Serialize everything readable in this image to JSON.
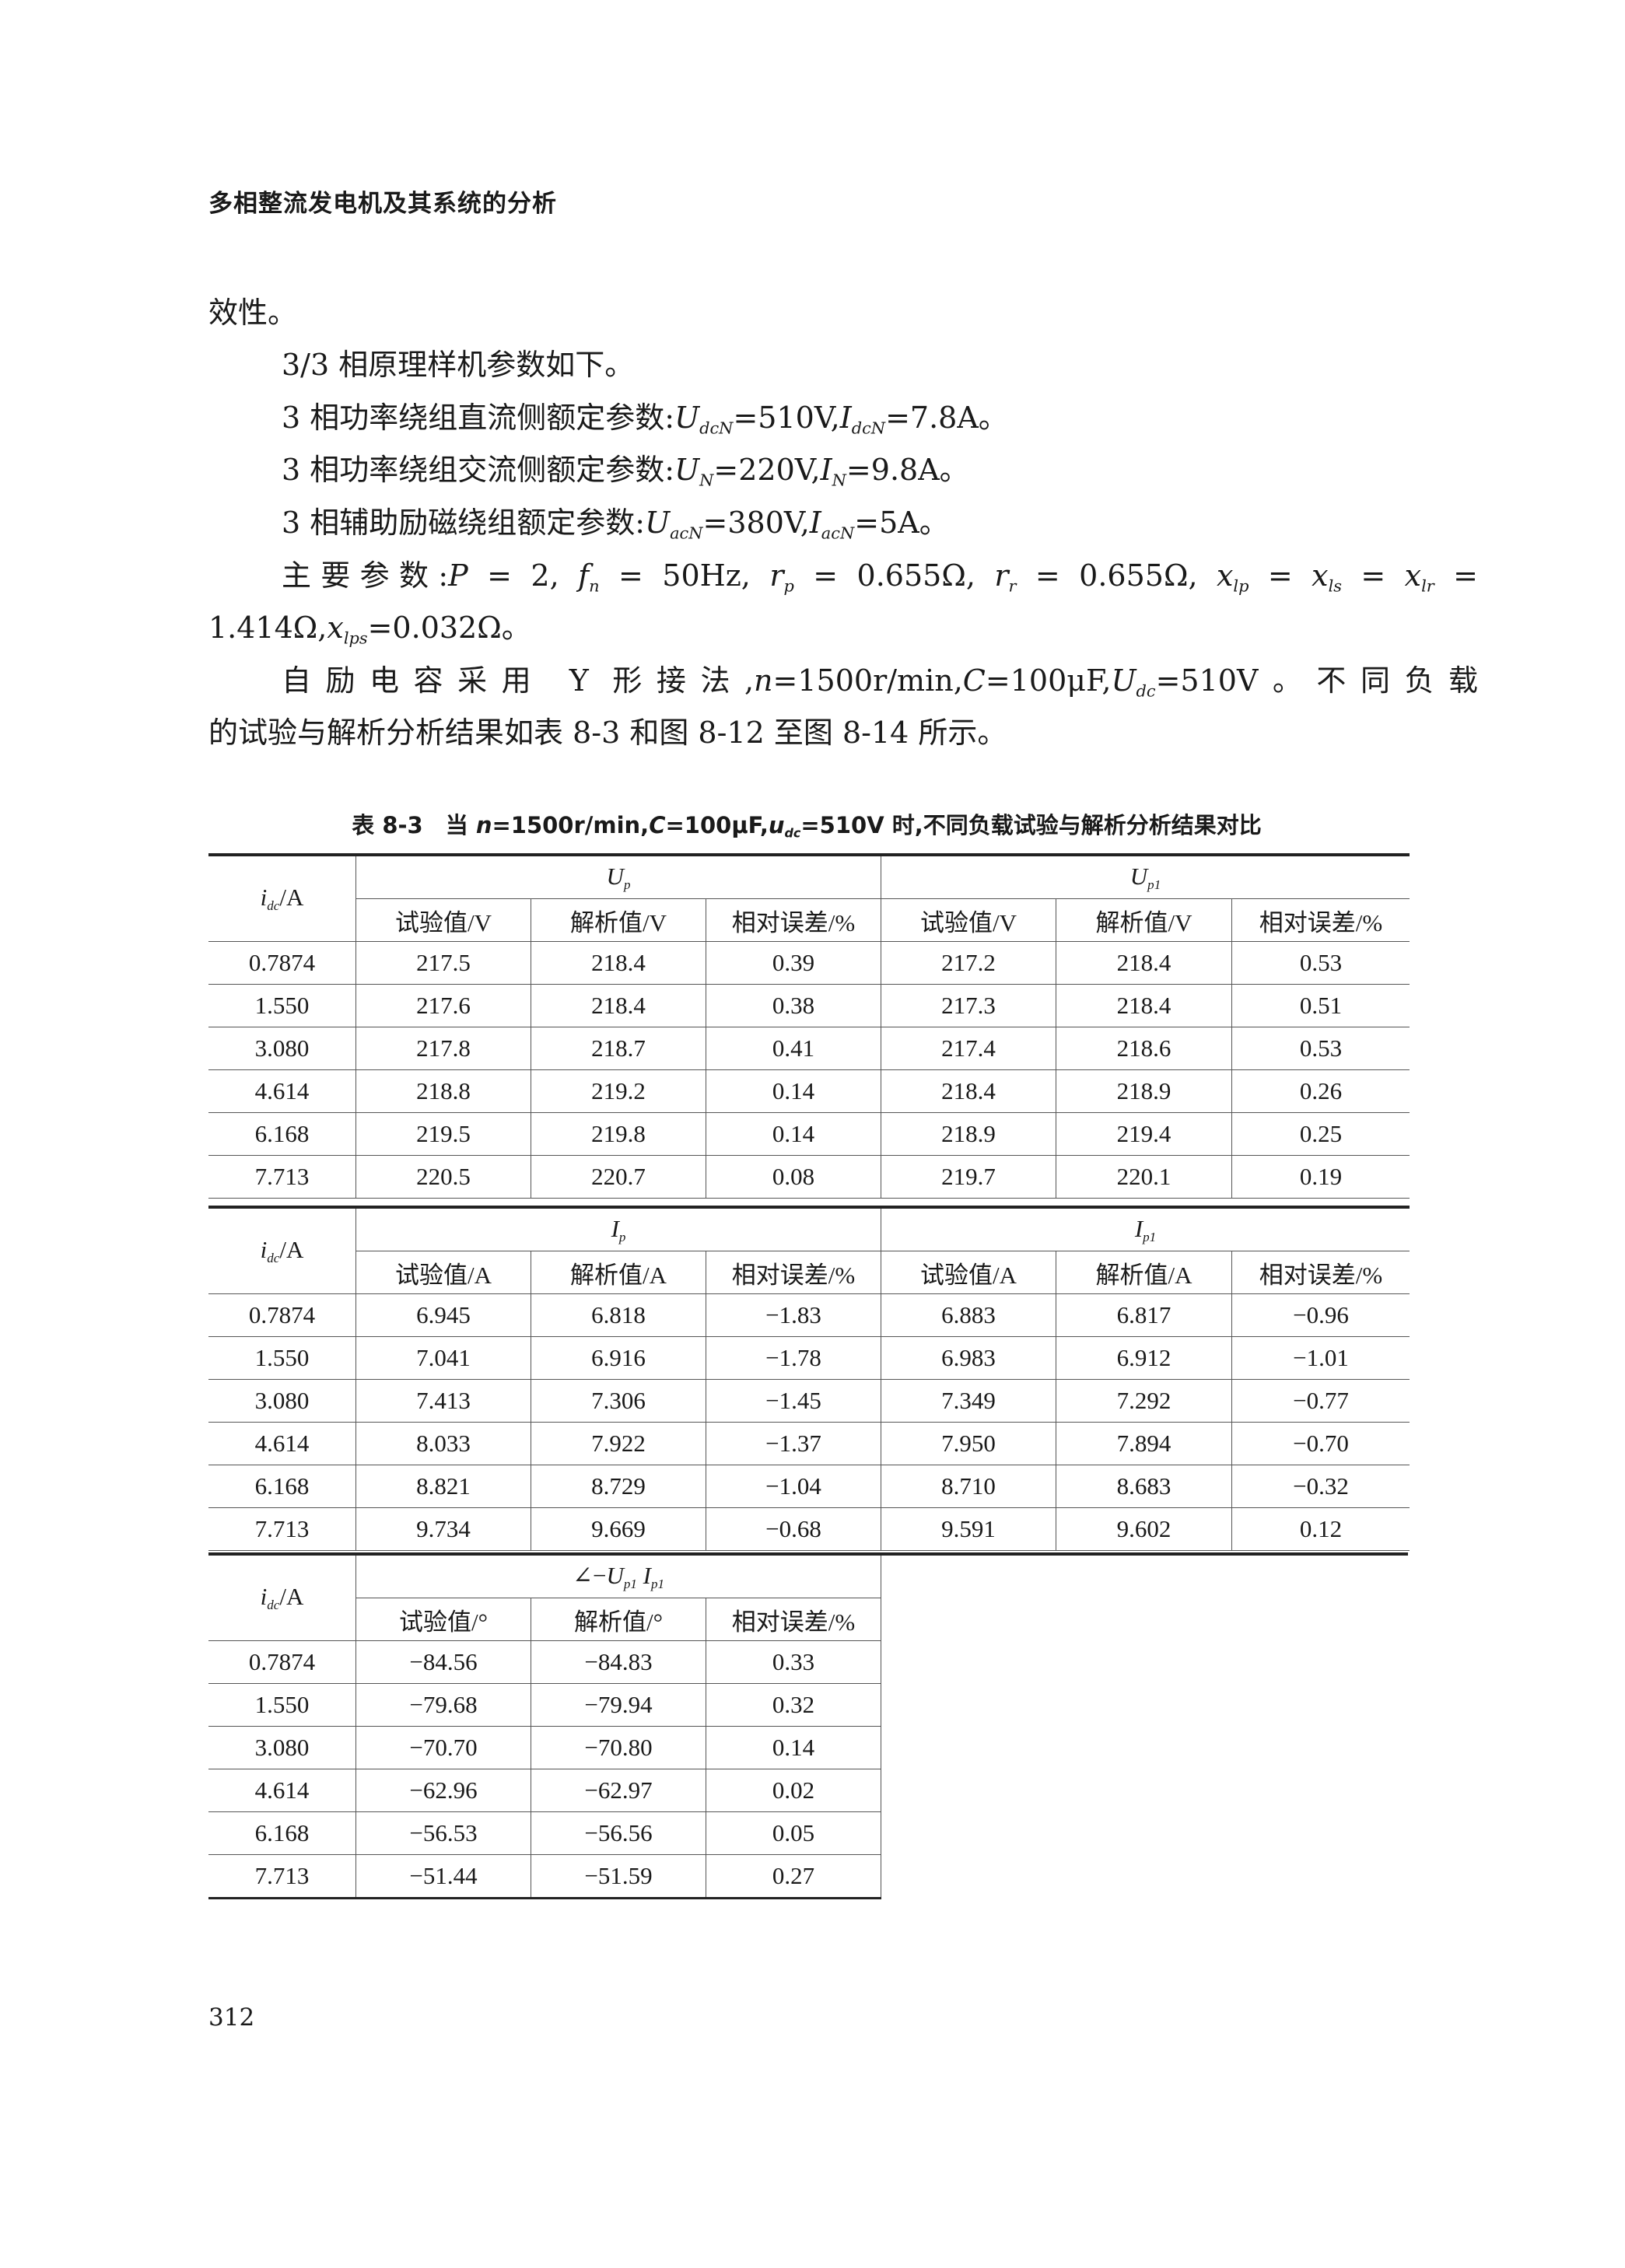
{
  "header": {
    "running_title": "多相整流发电机及其系统的分析"
  },
  "body": {
    "lines": [
      {
        "style": "noindent",
        "segments": [
          {
            "t": "效性。"
          }
        ]
      },
      {
        "style": "indent",
        "segments": [
          {
            "t": "3/3 相原理样机参数如下。"
          }
        ]
      },
      {
        "style": "indent",
        "segments": [
          {
            "t": "3 相功率绕组直流侧额定参数:"
          },
          {
            "v": "U"
          },
          {
            "s": "dcN"
          },
          {
            "t": "=510V,"
          },
          {
            "v": "I"
          },
          {
            "s": "dcN"
          },
          {
            "t": "=7.8A。"
          }
        ]
      },
      {
        "style": "indent",
        "segments": [
          {
            "t": "3 相功率绕组交流侧额定参数:"
          },
          {
            "v": "U"
          },
          {
            "s": "N"
          },
          {
            "t": "=220V,"
          },
          {
            "v": "I"
          },
          {
            "s": "N"
          },
          {
            "t": "=9.8A。"
          }
        ]
      },
      {
        "style": "indent",
        "segments": [
          {
            "t": "3 相辅助励磁绕组额定参数:"
          },
          {
            "v": "U"
          },
          {
            "s": "acN"
          },
          {
            "t": "=380V,"
          },
          {
            "v": "I"
          },
          {
            "s": "acN"
          },
          {
            "t": "=5A。"
          }
        ]
      },
      {
        "style": "indent justify",
        "segments": [
          {
            "t": "主要参数:"
          },
          {
            "v": "P"
          },
          {
            "t": " = 2, "
          },
          {
            "v": "f"
          },
          {
            "s": "n"
          },
          {
            "t": " = 50Hz, "
          },
          {
            "v": "r"
          },
          {
            "s": "p"
          },
          {
            "t": " = 0.655Ω, "
          },
          {
            "v": "r"
          },
          {
            "s": "r"
          },
          {
            "t": " = 0.655Ω, "
          },
          {
            "v": "x"
          },
          {
            "s": "lp"
          },
          {
            "t": " = "
          },
          {
            "v": "x"
          },
          {
            "s": "ls"
          },
          {
            "t": " = "
          },
          {
            "v": "x"
          },
          {
            "s": "lr"
          },
          {
            "t": " ="
          }
        ]
      },
      {
        "style": "noindent",
        "segments": [
          {
            "t": "1.414Ω,"
          },
          {
            "v": "x"
          },
          {
            "s": "lps"
          },
          {
            "t": "=0.032Ω。"
          }
        ]
      },
      {
        "style": "indent justify",
        "segments": [
          {
            "t": "自励电容采用 Y 形接法,"
          },
          {
            "v": "n"
          },
          {
            "t": "=1500r/min,"
          },
          {
            "v": "C"
          },
          {
            "t": "=100μF,"
          },
          {
            "v": "U"
          },
          {
            "s": "dc"
          },
          {
            "t": "=510V。不同负载"
          }
        ]
      },
      {
        "style": "noindent",
        "segments": [
          {
            "t": "的试验与解析分析结果如表 8-3 和图 8-12 至图 8-14 所示。"
          }
        ]
      }
    ]
  },
  "table": {
    "caption": [
      {
        "t": "表 8-3　当 "
      },
      {
        "v": "n"
      },
      {
        "t": "=1500r/min,"
      },
      {
        "v": "C"
      },
      {
        "t": "=100μF,"
      },
      {
        "v": "u"
      },
      {
        "s": "dc"
      },
      {
        "t": "=510V 时,不同负载试验与解析分析结果对比"
      }
    ],
    "row_header": [
      {
        "v": "i"
      },
      {
        "s": "dc"
      },
      {
        "t": "/A"
      }
    ],
    "sections": [
      {
        "groups": [
          [
            {
              "v": "U"
            },
            {
              "s": "p"
            }
          ],
          [
            {
              "v": "U"
            },
            {
              "s": "p1"
            }
          ]
        ],
        "subheaders": [
          "试验值/V",
          "解析值/V",
          "相对误差/%",
          "试验值/V",
          "解析值/V",
          "相对误差/%"
        ],
        "rows": [
          [
            "0.7874",
            "217.5",
            "218.4",
            "0.39",
            "217.2",
            "218.4",
            "0.53"
          ],
          [
            "1.550",
            "217.6",
            "218.4",
            "0.38",
            "217.3",
            "218.4",
            "0.51"
          ],
          [
            "3.080",
            "217.8",
            "218.7",
            "0.41",
            "217.4",
            "218.6",
            "0.53"
          ],
          [
            "4.614",
            "218.8",
            "219.2",
            "0.14",
            "218.4",
            "218.9",
            "0.26"
          ],
          [
            "6.168",
            "219.5",
            "219.8",
            "0.14",
            "218.9",
            "219.4",
            "0.25"
          ],
          [
            "7.713",
            "220.5",
            "220.7",
            "0.08",
            "219.7",
            "220.1",
            "0.19"
          ]
        ]
      },
      {
        "groups": [
          [
            {
              "v": "I"
            },
            {
              "s": "p"
            }
          ],
          [
            {
              "v": "I"
            },
            {
              "s": "p1"
            }
          ]
        ],
        "subheaders": [
          "试验值/A",
          "解析值/A",
          "相对误差/%",
          "试验值/A",
          "解析值/A",
          "相对误差/%"
        ],
        "rows": [
          [
            "0.7874",
            "6.945",
            "6.818",
            "−1.83",
            "6.883",
            "6.817",
            "−0.96"
          ],
          [
            "1.550",
            "7.041",
            "6.916",
            "−1.78",
            "6.983",
            "6.912",
            "−1.01"
          ],
          [
            "3.080",
            "7.413",
            "7.306",
            "−1.45",
            "7.349",
            "7.292",
            "−0.77"
          ],
          [
            "4.614",
            "8.033",
            "7.922",
            "−1.37",
            "7.950",
            "7.894",
            "−0.70"
          ],
          [
            "6.168",
            "8.821",
            "8.729",
            "−1.04",
            "8.710",
            "8.683",
            "−0.32"
          ],
          [
            "7.713",
            "9.734",
            "9.669",
            "−0.68",
            "9.591",
            "9.602",
            "0.12"
          ]
        ]
      },
      {
        "groups": [
          [
            {
              "t": "∠−"
            },
            {
              "v": "U"
            },
            {
              "s": "p1"
            },
            {
              "v": " I"
            },
            {
              "s": "p1"
            }
          ]
        ],
        "subheaders": [
          "试验值/°",
          "解析值/°",
          "相对误差/%"
        ],
        "rows": [
          [
            "0.7874",
            "−84.56",
            "−84.83",
            "0.33"
          ],
          [
            "1.550",
            "−79.68",
            "−79.94",
            "0.32"
          ],
          [
            "3.080",
            "−70.70",
            "−70.80",
            "0.14"
          ],
          [
            "4.614",
            "−62.96",
            "−62.97",
            "0.02"
          ],
          [
            "6.168",
            "−56.53",
            "−56.56",
            "0.05"
          ],
          [
            "7.713",
            "−51.44",
            "−51.59",
            "0.27"
          ]
        ]
      }
    ]
  },
  "footer": {
    "page_number": "312"
  }
}
